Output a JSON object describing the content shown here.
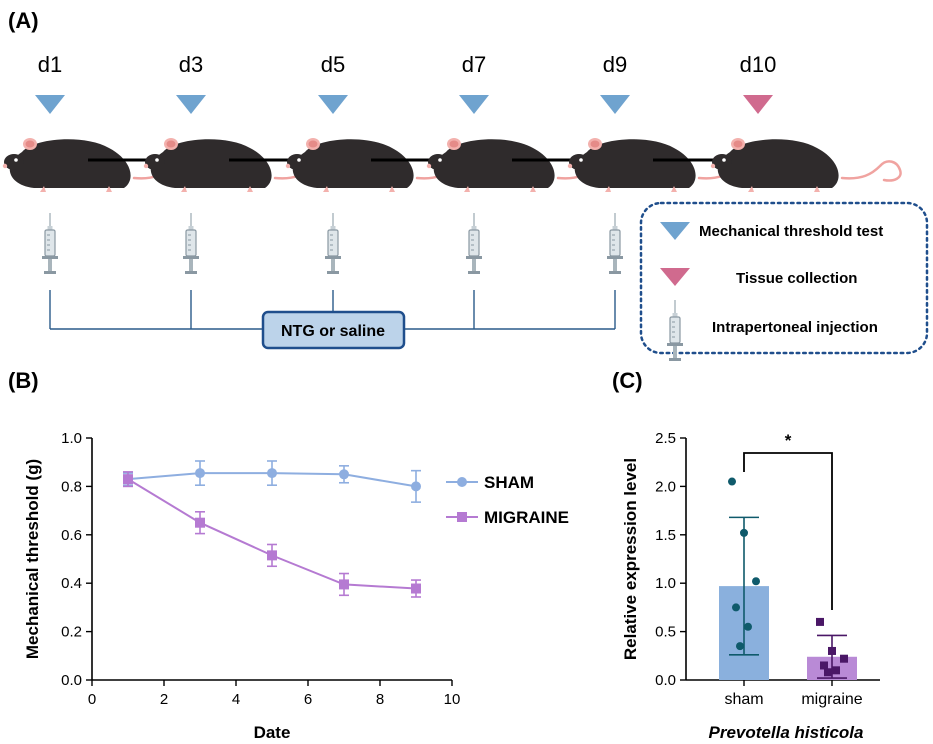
{
  "panels": {
    "a_label": "(A)",
    "b_label": "(B)",
    "c_label": "(C)"
  },
  "timeline": {
    "days": [
      {
        "label": "d1",
        "event": "test"
      },
      {
        "label": "d3",
        "event": "test"
      },
      {
        "label": "d5",
        "event": "test"
      },
      {
        "label": "d7",
        "event": "test"
      },
      {
        "label": "d9",
        "event": "test"
      },
      {
        "label": "d10",
        "event": "collection"
      }
    ],
    "treatment_label": "NTG or saline",
    "legend": {
      "test_label": "Mechanical threshold test",
      "collection_label": "Tissue collection",
      "injection_label": "Intrapertoneal injection"
    },
    "colors": {
      "test_marker": "#6fa3cf",
      "collection_marker": "#d06a8e",
      "mouse": "#2f2b2c",
      "box_fill": "#bcd3ea",
      "box_border": "#1f4e8c",
      "dotted_border": "#1f4e8c"
    }
  },
  "chart_data": [
    {
      "type": "line",
      "xlabel": "Date",
      "ylabel": "Mechanical threshold (g)",
      "xlim": [
        0,
        10
      ],
      "ylim": [
        0,
        1.0
      ],
      "xticks": [
        "0",
        "2",
        "4",
        "6",
        "8",
        "10"
      ],
      "yticks": [
        "0.0",
        "0.2",
        "0.4",
        "0.6",
        "0.8",
        "1.0"
      ],
      "legend_position": "right",
      "x": [
        1,
        3,
        5,
        7,
        9
      ],
      "series": [
        {
          "name": "SHAM",
          "marker": "circle",
          "color": "#8eaee0",
          "values": [
            0.83,
            0.855,
            0.855,
            0.85,
            0.8
          ],
          "errors": [
            0.025,
            0.05,
            0.05,
            0.035,
            0.065
          ]
        },
        {
          "name": "MIGRAINE",
          "marker": "square",
          "color": "#b57ad2",
          "values": [
            0.83,
            0.65,
            0.515,
            0.395,
            0.378
          ],
          "errors": [
            0.03,
            0.045,
            0.045,
            0.045,
            0.035
          ]
        }
      ]
    },
    {
      "type": "bar",
      "ylabel": "Relative expression level",
      "xlabel": "Prevotella histicola",
      "ylim": [
        0,
        2.5
      ],
      "yticks": [
        "0.0",
        "0.5",
        "1.0",
        "1.5",
        "2.0",
        "2.5"
      ],
      "categories": [
        "sham",
        "migraine"
      ],
      "values": [
        0.97,
        0.24
      ],
      "errors": [
        0.71,
        0.22
      ],
      "bar_colors": [
        "#8ab0dd",
        "#b98ad6"
      ],
      "point_colors": [
        "#0f5a6b",
        "#4a1766"
      ],
      "points": [
        [
          2.05,
          1.52,
          1.02,
          0.75,
          0.55,
          0.35
        ],
        [
          0.6,
          0.3,
          0.22,
          0.15,
          0.1,
          0.08
        ]
      ],
      "significance": "*"
    }
  ]
}
